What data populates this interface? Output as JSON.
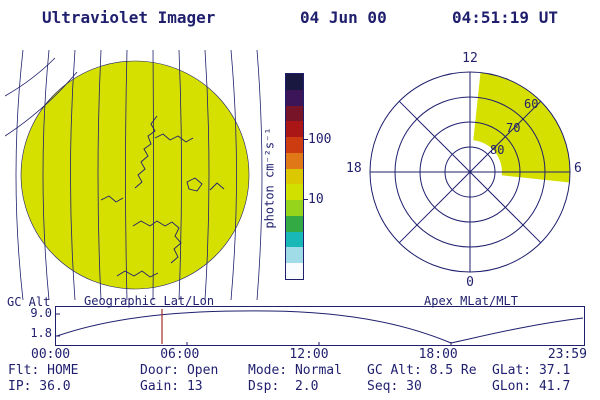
{
  "colors": {
    "ink": "#1f1f6e",
    "aurora": "#d6e000",
    "marker": "#a03028"
  },
  "header": {
    "title": "Ultraviolet Imager",
    "date": "04 Jun 00",
    "time": "04:51:19 UT"
  },
  "colorbar": {
    "unit_label": "photon cm⁻²s⁻¹",
    "tick_labels": [
      "100",
      "10"
    ],
    "bands": [
      "#181840",
      "#3c1458",
      "#781428",
      "#aa1616",
      "#cc3c10",
      "#e07818",
      "#dcc800",
      "#d2e000",
      "#96d41c",
      "#34aa44",
      "#18b8b8",
      "#a0dce8",
      "#f8fcff"
    ]
  },
  "geo_panel": {
    "caption": "Geographic Lat/Lon"
  },
  "polar_panel": {
    "caption": "Apex MLat/MLT",
    "mlt_top": "12",
    "mlt_left": "18",
    "mlt_right": "6",
    "mlt_bottom": "0",
    "mlat_rings": [
      "60",
      "70",
      "80"
    ]
  },
  "alt_panel": {
    "ylabel": "GC Alt",
    "y_max": "9.0",
    "y_min": "1.8",
    "xticks": [
      "00:00",
      "06:00",
      "12:00",
      "18:00",
      "23:59"
    ]
  },
  "status": {
    "row1": [
      "Flt: HOME",
      "Door: Open",
      "Mode: Normal",
      "GC Alt: 8.5 Re",
      "GLat: 37.1"
    ],
    "row2": [
      "IP: 36.0",
      "Gain: 13",
      "Dsp:  2.0",
      "Seq: 30",
      "GLon: 41.7"
    ]
  }
}
